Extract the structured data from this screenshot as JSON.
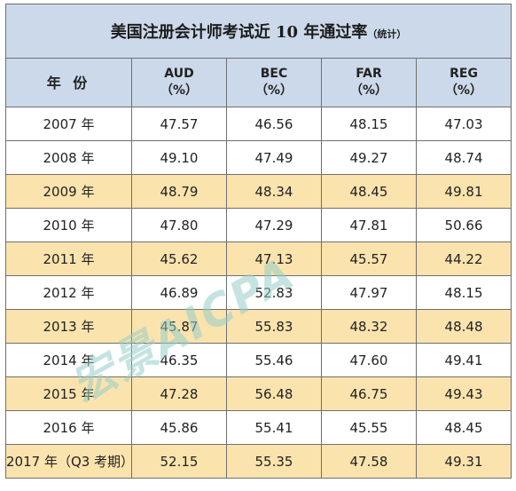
{
  "title": "美国注册会计师考试近 10 年通过率",
  "title_note": "（统计）",
  "columns": {
    "year": "年 份",
    "aud": "AUD",
    "bec": "BEC",
    "far": "FAR",
    "reg": "REG",
    "unit": "（%）"
  },
  "rows": [
    {
      "year": "2007 年",
      "aud": "47.57",
      "bec": "46.56",
      "far": "48.15",
      "reg": "47.03"
    },
    {
      "year": "2008 年",
      "aud": "49.10",
      "bec": "47.49",
      "far": "49.27",
      "reg": "48.74"
    },
    {
      "year": "2009 年",
      "aud": "48.79",
      "bec": "48.34",
      "far": "48.45",
      "reg": "49.81"
    },
    {
      "year": "2010 年",
      "aud": "47.80",
      "bec": "47.29",
      "far": "47.81",
      "reg": "50.66"
    },
    {
      "year": "2011 年",
      "aud": "45.62",
      "bec": "47.13",
      "far": "45.57",
      "reg": "44.22"
    },
    {
      "year": "2012 年",
      "aud": "46.89",
      "bec": "52.83",
      "far": "47.97",
      "reg": "48.15"
    },
    {
      "year": "2013 年",
      "aud": "45.87",
      "bec": "55.83",
      "far": "48.32",
      "reg": "48.48"
    },
    {
      "year": "2014 年",
      "aud": "46.35",
      "bec": "55.46",
      "far": "47.60",
      "reg": "49.41"
    },
    {
      "year": "2015 年",
      "aud": "47.28",
      "bec": "56.48",
      "far": "46.75",
      "reg": "49.43"
    },
    {
      "year": "2016 年",
      "aud": "45.86",
      "bec": "55.41",
      "far": "45.55",
      "reg": "48.45"
    },
    {
      "year": "2017 年（Q3 考期）",
      "aud": "52.15",
      "bec": "55.35",
      "far": "47.58",
      "reg": "49.31"
    }
  ],
  "watermark": "宏景AICPA",
  "colors": {
    "header_bg": "#ccd9ea",
    "alt_row_bg": "#fbe3ae",
    "watermark": "#96cdc8"
  }
}
